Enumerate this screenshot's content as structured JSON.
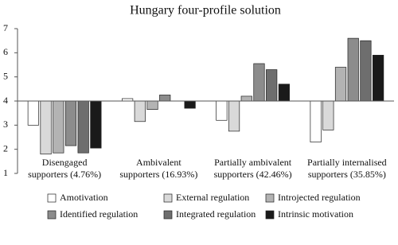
{
  "chart_data": {
    "type": "bar",
    "title": "Hungary four-profile solution",
    "categories": [
      [
        "Disengaged",
        "supporters (4.76%)"
      ],
      [
        "Ambivalent",
        "supporters (16.93%)"
      ],
      [
        "Partially ambivalent",
        "supporters (42.46%)"
      ],
      [
        "Partially internalised",
        "supporters (35.85%)"
      ]
    ],
    "series": [
      {
        "name": "Amotivation",
        "color": "#ffffff",
        "values": [
          3.0,
          4.1,
          3.2,
          2.3
        ]
      },
      {
        "name": "External regulation",
        "color": "#d9d9d9",
        "values": [
          1.8,
          3.15,
          2.75,
          2.8
        ]
      },
      {
        "name": "Introjected regulation",
        "color": "#b3b3b3",
        "values": [
          1.85,
          3.65,
          4.2,
          5.4
        ]
      },
      {
        "name": "Identified regulation",
        "color": "#8c8c8c",
        "values": [
          2.15,
          4.25,
          5.55,
          6.6
        ]
      },
      {
        "name": "Integrated regulation",
        "color": "#6e6e6e",
        "values": [
          1.85,
          4.0,
          5.3,
          6.5
        ]
      },
      {
        "name": "Intrinsic motivation",
        "color": "#1a1a1a",
        "values": [
          2.05,
          3.7,
          4.7,
          5.9
        ]
      }
    ],
    "baseline": 4,
    "ylim": [
      1,
      7
    ],
    "yticks": [
      1,
      2,
      3,
      4,
      5,
      6,
      7
    ],
    "grid": false,
    "legend": "bottom"
  }
}
